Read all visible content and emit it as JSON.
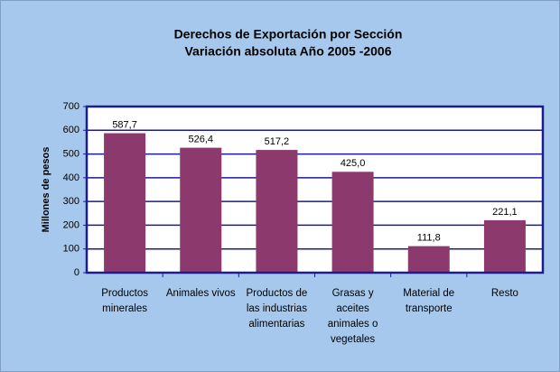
{
  "chart_data": {
    "type": "bar",
    "title": "Derechos de Exportación por Sección",
    "subtitle": "Variación absoluta Año 2005 -2006",
    "y_label": "Millones de pesos",
    "categories": [
      "Productos minerales",
      "Animales vivos",
      "Productos de las industrias alimentarias",
      "Grasas y aceites animales o vegetales",
      "Material de transporte",
      "Resto"
    ],
    "values": [
      587.7,
      526.4,
      517.2,
      425.0,
      111.8,
      221.1
    ],
    "value_labels": [
      "587,7",
      "526,4",
      "517,2",
      "425,0",
      "111,8",
      "221,1"
    ],
    "color": "#8c3a6e",
    "ylim": [
      0,
      700
    ],
    "yticks": [
      0,
      100,
      200,
      300,
      400,
      500,
      600,
      700
    ],
    "grid": true
  }
}
